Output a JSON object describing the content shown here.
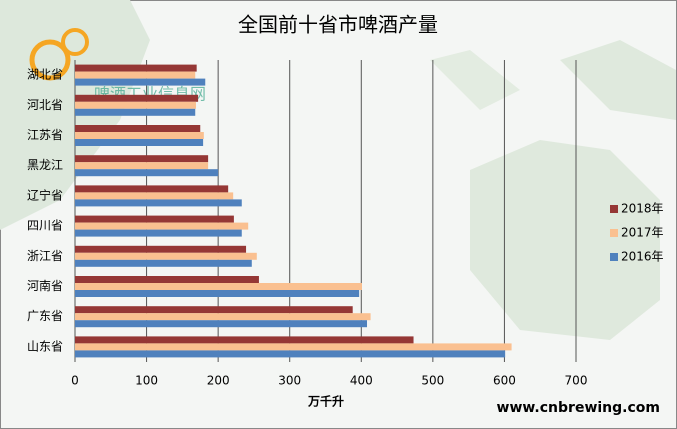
{
  "chart_data": {
    "type": "barh",
    "title": "全国前十省市啤酒产量",
    "x_label": "万千升",
    "watermark": "www.cnbrewing.com",
    "logo_text": "啤酒工业信息网",
    "categories": [
      "湖北省",
      "河北省",
      "江苏省",
      "黑龙江",
      "辽宁省",
      "四川省",
      "浙江省",
      "河南省",
      "广东省",
      "山东省"
    ],
    "series": [
      {
        "name": "2018年",
        "color": "#953735",
        "values": [
          170,
          172,
          175,
          186,
          214,
          222,
          239,
          257,
          388,
          473
        ]
      },
      {
        "name": "2017年",
        "color": "#fac090",
        "values": [
          168,
          169,
          180,
          186,
          221,
          242,
          254,
          401,
          413,
          610
        ]
      },
      {
        "name": "2016年",
        "color": "#4f81bd",
        "values": [
          182,
          168,
          179,
          200,
          233,
          233,
          247,
          397,
          408,
          601
        ]
      }
    ],
    "xlim": [
      0,
      700
    ],
    "xticks": [
      0,
      100,
      200,
      300,
      400,
      500,
      600,
      700
    ],
    "grid": true,
    "legend": "right"
  }
}
